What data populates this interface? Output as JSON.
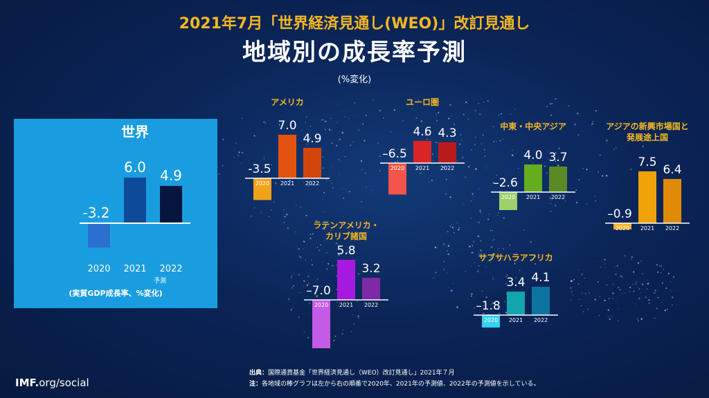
{
  "header": {
    "subtitle": "2021年7月「世界経済見通し(WEO)」改訂見通し",
    "title": "地域別の成長率予測",
    "unit": "(%変化)"
  },
  "chart_data": [
    {
      "type": "bar",
      "id": "world",
      "title": "世界",
      "categories": [
        "2020",
        "2021",
        "2022"
      ],
      "values": [
        -3.2,
        6.0,
        4.9
      ],
      "value_labels": [
        "-3.2",
        "6.0",
        "4.9"
      ],
      "colors": [
        "#2b6fd1",
        "#0e4a9a",
        "#07163f"
      ],
      "forecast_label": "予測",
      "note": "(実質GDP成長率、%変化)"
    },
    {
      "type": "bar",
      "id": "america",
      "title": "アメリカ",
      "categories": [
        "2020",
        "2021",
        "2022"
      ],
      "values": [
        -3.5,
        7.0,
        4.9
      ],
      "value_labels": [
        "-3.5",
        "7.0",
        "4.9"
      ],
      "colors": [
        "#f0a31a",
        "#e2530e",
        "#d2460c"
      ]
    },
    {
      "type": "bar",
      "id": "euro",
      "title": "ユーロ圏",
      "categories": [
        "2020",
        "2021",
        "2022"
      ],
      "values": [
        -6.5,
        4.6,
        4.3
      ],
      "value_labels": [
        "–6.5",
        "4.6",
        "4.3"
      ],
      "colors": [
        "#f4544a",
        "#d92525",
        "#b81c1c"
      ]
    },
    {
      "type": "bar",
      "id": "mideast",
      "title": "中東・中央アジア",
      "categories": [
        "2020",
        "2021",
        "2022"
      ],
      "values": [
        -2.6,
        4.0,
        3.7
      ],
      "value_labels": [
        "–2.6",
        "4.0",
        "3.7"
      ],
      "colors": [
        "#9bd06a",
        "#63ad1e",
        "#5b8a25"
      ]
    },
    {
      "type": "bar",
      "id": "asia",
      "title": "アジアの新興市場国と発展途上国",
      "title_lines": [
        "アジアの新興市場国と",
        "発展途上国"
      ],
      "categories": [
        "2020",
        "2021",
        "2022"
      ],
      "values": [
        -0.9,
        7.5,
        6.4
      ],
      "value_labels": [
        "–0.9",
        "7.5",
        "6.4"
      ],
      "colors": [
        "#f7b32b",
        "#f0a20a",
        "#e08a06"
      ]
    },
    {
      "type": "bar",
      "id": "latam",
      "title": "ラテンアメリカ・カリブ諸国",
      "title_lines": [
        "ラテンアメリカ・",
        "カリブ諸国"
      ],
      "categories": [
        "2020",
        "2021",
        "2022"
      ],
      "values": [
        -7.0,
        5.8,
        3.2
      ],
      "value_labels": [
        "–7.0",
        "5.8",
        "3.2"
      ],
      "colors": [
        "#c45be6",
        "#a61ae0",
        "#7c2aa6"
      ]
    },
    {
      "type": "bar",
      "id": "ssa",
      "title": "サブサハラアフリカ",
      "categories": [
        "2020",
        "2021",
        "2022"
      ],
      "values": [
        -1.8,
        3.4,
        4.1
      ],
      "value_labels": [
        "–1.8",
        "3.4",
        "4.1"
      ],
      "colors": [
        "#35d2ee",
        "#13a4ad",
        "#0d74a2"
      ]
    }
  ],
  "footer": {
    "source_label": "出典：",
    "source": "国際通貨基金「世界経済見通し（WEO）改訂見通し」2021年７月",
    "note_label": "注：",
    "note": "各地域の棒グラフは左から右の順番で2020年、2021年の予測値、2022年の予測値を示している。",
    "logo_bold": "IMF.",
    "logo_rest": "org/social"
  }
}
